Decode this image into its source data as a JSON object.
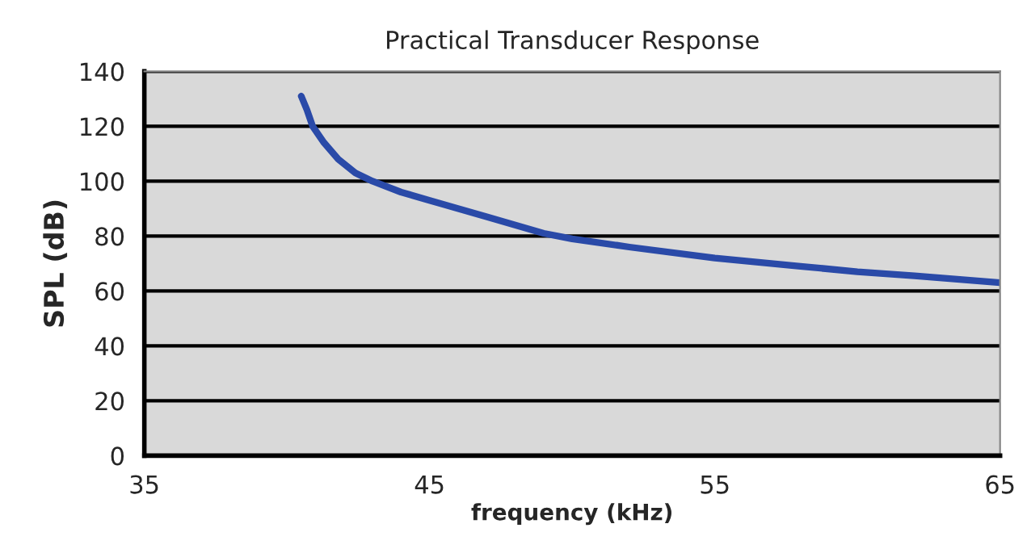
{
  "chart_data": {
    "type": "line",
    "title": "Practical Transducer Response",
    "xlabel": "frequency (kHz)",
    "ylabel": "SPL (dB)",
    "xlim": [
      35,
      65
    ],
    "xticks": [
      35,
      45,
      55,
      65
    ],
    "ylim": [
      0,
      140
    ],
    "yticks": [
      0,
      20,
      40,
      60,
      80,
      100,
      120,
      140
    ],
    "grid": "y",
    "series": [
      {
        "color": "#2a4aa8",
        "x": [
          40.5,
          40.7,
          40.9,
          41.3,
          41.8,
          42.4,
          43,
          44,
          45,
          47,
          49,
          50,
          52,
          55,
          58,
          60,
          62,
          65
        ],
        "values": [
          131,
          126,
          120,
          114,
          108,
          103,
          100,
          96,
          93,
          87,
          81,
          79,
          76,
          72,
          69,
          67,
          65.5,
          63
        ]
      }
    ]
  }
}
